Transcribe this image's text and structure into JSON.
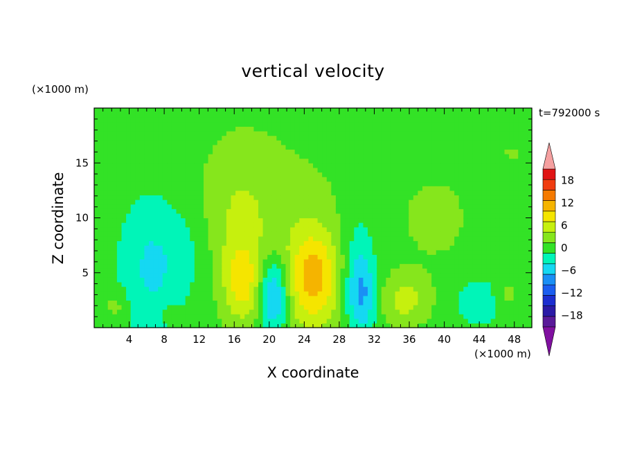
{
  "chart_data": {
    "type": "heatmap",
    "title": "vertical velocity",
    "xlabel": "X coordinate",
    "ylabel": "Z coordinate",
    "x_unit": "(×1000 m)",
    "y_unit": "(×1000 m)",
    "time_label": "t=792000 s",
    "xlim": [
      0,
      50
    ],
    "ylim": [
      0,
      20
    ],
    "x_ticks": [
      4,
      8,
      12,
      16,
      20,
      24,
      28,
      32,
      36,
      40,
      44,
      48
    ],
    "y_ticks": [
      5,
      10,
      15
    ],
    "colorbar": {
      "tick_values": [
        18,
        12,
        6,
        0,
        -6,
        -12,
        -18
      ],
      "tick_labels": [
        "18",
        "12",
        "6",
        "0",
        "−6",
        "−12",
        "−18"
      ],
      "levels": [
        -21,
        -18,
        -15,
        -12,
        -9,
        -6,
        -3,
        0,
        3,
        6,
        9,
        12,
        15,
        18,
        21
      ],
      "colors": [
        "#5a1a99",
        "#2b1aa6",
        "#1c2ed0",
        "#1b5ef0",
        "#1a8ff5",
        "#15d8f2",
        "#00f5b8",
        "#33e226",
        "#86e61c",
        "#c6f00e",
        "#f5e500",
        "#f5b400",
        "#f57a00",
        "#f03c10",
        "#e01414"
      ],
      "over_color": "#f5a0a0",
      "under_color": "#8010a0"
    },
    "background_value": 1.5,
    "features": [
      {
        "x": 17,
        "z": 4,
        "sx": 1.5,
        "sz": 2.5,
        "w": 7
      },
      {
        "x": 16.5,
        "z": 9,
        "sx": 3,
        "sz": 5,
        "w": 4
      },
      {
        "x": 20,
        "z": 13,
        "sx": 6,
        "sz": 5,
        "w": 1.5
      },
      {
        "x": 25,
        "z": 4.5,
        "sx": 2,
        "sz": 3,
        "w": 9
      },
      {
        "x": 25,
        "z": 5,
        "sx": 3.5,
        "sz": 5,
        "w": 3
      },
      {
        "x": 35.5,
        "z": 2.5,
        "sx": 2,
        "sz": 1.6,
        "w": 5.5
      },
      {
        "x": 6.5,
        "z": 5.5,
        "sx": 2.5,
        "sz": 4.5,
        "w": -5
      },
      {
        "x": 20.5,
        "z": 3,
        "sx": 1.2,
        "sz": 2.5,
        "w": -10
      },
      {
        "x": 30.5,
        "z": 3,
        "sx": 1.2,
        "sz": 2.5,
        "w": -8
      },
      {
        "x": 30,
        "z": 7,
        "sx": 1.5,
        "sz": 4,
        "w": -3
      },
      {
        "x": 2.5,
        "z": 2,
        "sx": 1,
        "sz": 1,
        "w": 3
      },
      {
        "x": 8.5,
        "z": 1.5,
        "sx": 0.8,
        "sz": 0.8,
        "w": 2
      },
      {
        "x": 44,
        "z": 2.5,
        "sx": 2,
        "sz": 1.5,
        "w": -4
      },
      {
        "x": 47,
        "z": 3,
        "sx": 1,
        "sz": 1,
        "w": 3
      },
      {
        "x": 1.5,
        "z": 15,
        "sx": 2,
        "sz": 2,
        "w": 1.5
      },
      {
        "x": 48,
        "z": 16,
        "sx": 3,
        "sz": 1.5,
        "w": 1.5
      },
      {
        "x": 39,
        "z": 10,
        "sx": 4,
        "sz": 4,
        "w": 2
      },
      {
        "x": 11,
        "z": 7,
        "sx": 2,
        "sz": 3,
        "w": -2
      }
    ]
  }
}
